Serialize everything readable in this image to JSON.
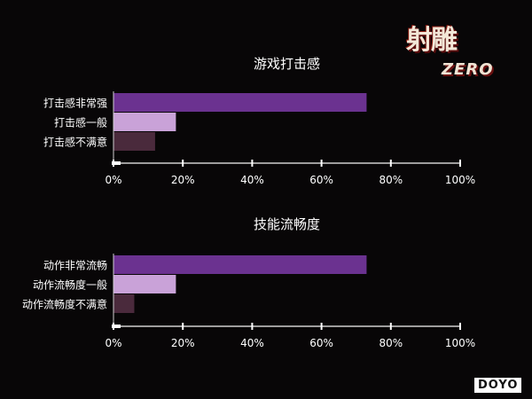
{
  "chart_data": [
    {
      "type": "bar",
      "orientation": "horizontal",
      "title": "游戏打击感",
      "categories": [
        "打击感非常强",
        "打击感一般",
        "打击感不满意"
      ],
      "values": [
        73,
        18,
        12
      ],
      "colors": [
        "#6b3290",
        "#c9a2d8",
        "#4a2a3c"
      ],
      "xlim": [
        0,
        100
      ],
      "xticks": [
        "0%",
        "20%",
        "40%",
        "60%",
        "80%",
        "100%"
      ],
      "grid": false
    },
    {
      "type": "bar",
      "orientation": "horizontal",
      "title": "技能流畅度",
      "categories": [
        "动作非常流畅",
        "动作流畅度一般",
        "动作流畅度不满意"
      ],
      "values": [
        73,
        18,
        6
      ],
      "colors": [
        "#6b3290",
        "#c9a2d8",
        "#4a2a3c"
      ],
      "xlim": [
        0,
        100
      ],
      "xticks": [
        "0%",
        "20%",
        "40%",
        "60%",
        "80%",
        "100%"
      ],
      "grid": false
    }
  ],
  "logo": {
    "main": "射雕",
    "sub": "ZERO"
  },
  "watermark": "DOYO",
  "colors": {
    "background": "#080607",
    "axis": "#cfcfcf",
    "text": "#ffffff"
  }
}
